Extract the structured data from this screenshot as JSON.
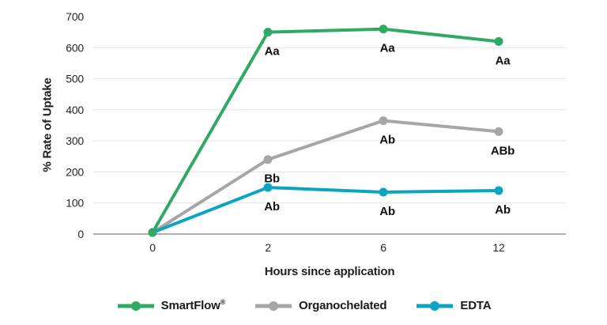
{
  "chart_data": {
    "type": "line",
    "title": "",
    "xlabel": "Hours since application",
    "ylabel": "% Rate of Uptake",
    "categories": [
      "0",
      "2",
      "6",
      "12"
    ],
    "y_ticks": [
      0,
      100,
      200,
      300,
      400,
      500,
      600,
      700
    ],
    "ylim": [
      0,
      700
    ],
    "grid": "horizontal, light gray, no line at 700",
    "legend_position": "bottom-center",
    "series": [
      {
        "name": "SmartFlow®",
        "color": "#30A965",
        "values": [
          5,
          650,
          660,
          620
        ],
        "point_labels": [
          "",
          "Aa",
          "Aa",
          "Aa"
        ]
      },
      {
        "name": "Organochelated",
        "color": "#A6A6A6",
        "values": [
          5,
          240,
          365,
          330
        ],
        "point_labels": [
          "",
          "Bb",
          "Ab",
          "ABb"
        ]
      },
      {
        "name": "EDTA",
        "color": "#0CA4C0",
        "values": [
          5,
          150,
          135,
          140
        ],
        "point_labels": [
          "",
          "Ab",
          "Ab",
          "Ab"
        ]
      }
    ]
  },
  "colors": {
    "background": "#FFFFFF",
    "gridline": "#E2E2E2",
    "axis_line": "#AFAFAF",
    "text": "#262626",
    "point_label_text": "#111111"
  }
}
